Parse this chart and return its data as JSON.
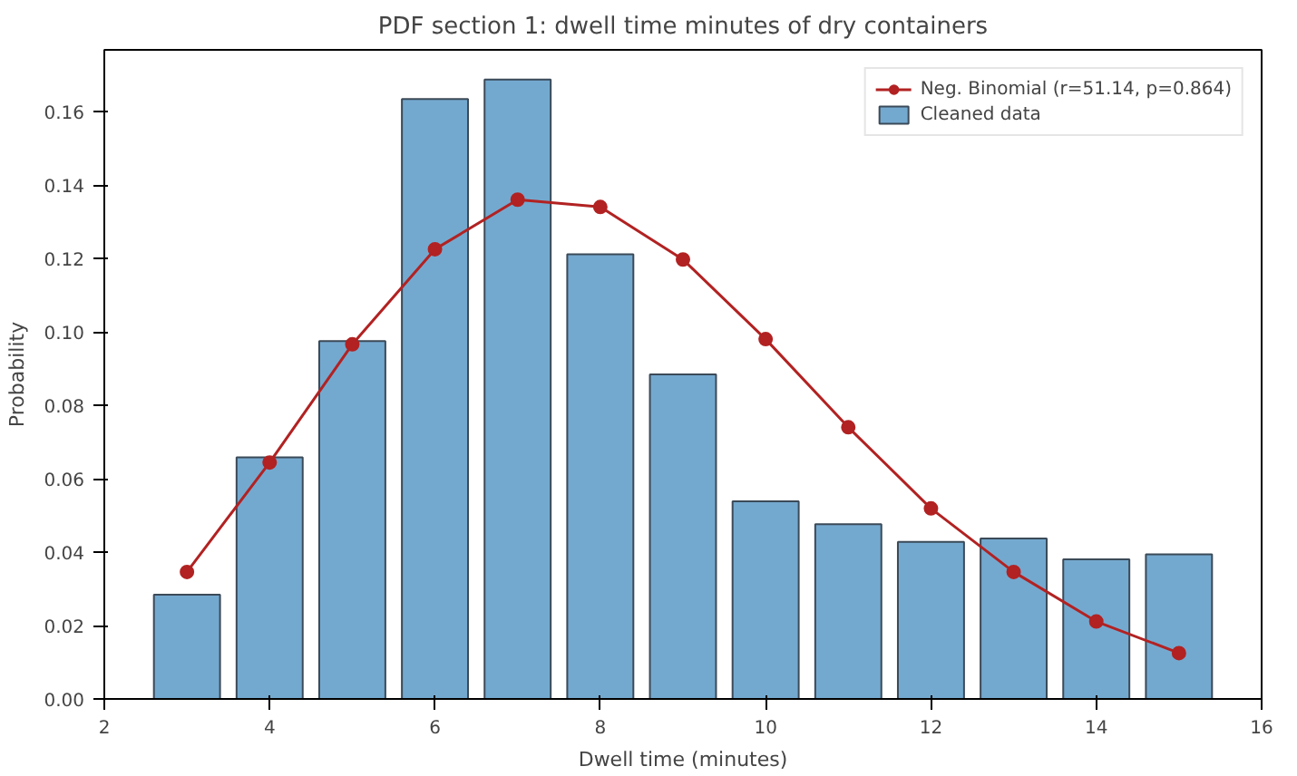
{
  "chart_data": {
    "type": "bar",
    "title": "PDF section 1: dwell time minutes of dry containers",
    "xlabel": "Dwell time (minutes)",
    "ylabel": "Probability",
    "x": [
      3,
      4,
      5,
      6,
      7,
      8,
      9,
      10,
      11,
      12,
      13,
      14,
      15
    ],
    "series": [
      {
        "name": "Cleaned data",
        "color": "#74a9cf",
        "values": [
          0.0284,
          0.0658,
          0.0975,
          0.1634,
          0.1687,
          0.1211,
          0.0884,
          0.0538,
          0.0476,
          0.0428,
          0.0437,
          0.038,
          0.0394
        ]
      },
      {
        "name": "Neg. Binomial (r=51.14, p=0.864)",
        "type": "line",
        "color": "#b22222",
        "marker": "circle",
        "values": [
          0.0346,
          0.0644,
          0.0966,
          0.1225,
          0.136,
          0.134,
          0.1197,
          0.098,
          0.074,
          0.0519,
          0.0346,
          0.0211,
          0.0125
        ]
      }
    ],
    "xlim": [
      2,
      16
    ],
    "xticks": [
      2,
      4,
      6,
      8,
      10,
      12,
      14,
      16
    ],
    "ylim": [
      0,
      0.1768
    ],
    "yticks": [
      {
        "value": 0,
        "label": "0.00"
      },
      {
        "value": 0.02,
        "label": "0.02"
      },
      {
        "value": 0.04,
        "label": "0.04"
      },
      {
        "value": 0.06,
        "label": "0.06"
      },
      {
        "value": 0.08,
        "label": "0.08"
      },
      {
        "value": 0.1,
        "label": "0.10"
      },
      {
        "value": 0.12,
        "label": "0.12"
      },
      {
        "value": 0.14,
        "label": "0.14"
      },
      {
        "value": 0.16,
        "label": "0.16"
      }
    ],
    "legend": "top right",
    "grid": false
  }
}
